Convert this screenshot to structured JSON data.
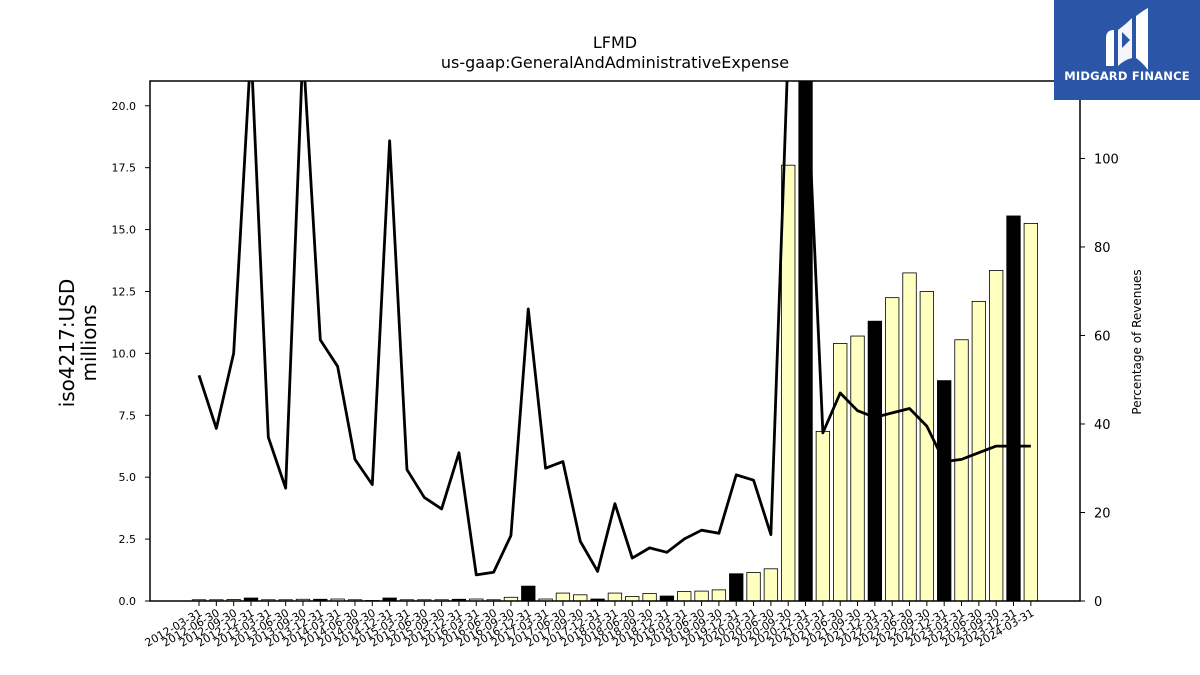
{
  "chart_data": {
    "type": "bar",
    "title": "LFMD",
    "subtitle": "us-gaap:GeneralAndAdministrativeExpense",
    "ylabel": "iso4217:USD",
    "ylabel_sub": "millions",
    "y2label": "Percentage of Revenues",
    "ylim": [
      0,
      21
    ],
    "y2lim": [
      0,
      120
    ],
    "yticks": [
      "0.0",
      "2.5",
      "5.0",
      "7.5",
      "10.0",
      "12.5",
      "15.0",
      "17.5",
      "20.0"
    ],
    "y2ticks": [
      "0",
      "20",
      "40",
      "60",
      "80",
      "100"
    ],
    "grid": false,
    "categories": [
      "2012-03-31",
      "2012-06-30",
      "2012-09-30",
      "2012-12-31",
      "2013-03-31",
      "2013-06-30",
      "2013-09-30",
      "2013-12-31",
      "2014-03-31",
      "2014-06-30",
      "2014-09-30",
      "2014-12-31",
      "2015-03-31",
      "2015-06-30",
      "2015-09-30",
      "2015-12-31",
      "2016-03-31",
      "2016-06-30",
      "2016-09-30",
      "2016-12-31",
      "2017-03-31",
      "2017-06-30",
      "2017-09-30",
      "2017-12-31",
      "2018-03-31",
      "2018-06-30",
      "2018-09-30",
      "2018-12-31",
      "2019-03-31",
      "2019-06-30",
      "2019-09-30",
      "2019-12-31",
      "2020-03-31",
      "2020-06-30",
      "2020-09-30",
      "2020-12-31",
      "2021-03-31",
      "2021-06-30",
      "2021-09-30",
      "2021-12-31",
      "2022-03-31",
      "2022-06-30",
      "2022-09-30",
      "2022-12-31",
      "2023-03-31",
      "2023-06-30",
      "2023-09-30",
      "2023-12-31",
      "2024-03-31"
    ],
    "xtick_labels": [
      "2012-03-31",
      "2012-06-30",
      "2012-09-30",
      "2012-12-31",
      "2013-03-31",
      "2013-06-30",
      "2013-09-30",
      "2013-12-31",
      "2014-03-31",
      "2014-06-30",
      "2014-09-30",
      "2014-12-31",
      "2015-03-31",
      "2015-06-30",
      "2015-09-30",
      "2015-12-31",
      "2016-03-31",
      "2016-06-30",
      "2016-09-30",
      "2016-12-31",
      "2017-03-31",
      "2017-06-30",
      "2017-09-30",
      "2017-12-31",
      "2018-03-31",
      "2018-06-30",
      "2018-09-30",
      "2018-12-31",
      "2019-03-31",
      "2019-06-30",
      "2019-09-30",
      "2019-12-31",
      "2020-03-31",
      "2020-06-30",
      "2020-09-30",
      "2020-12-31",
      "2021-03-31",
      "2021-06-30",
      "2021-09-30",
      "2021-12-31",
      "2022-03-31",
      "2022-06-30",
      "2022-09-30",
      "2022-12-31",
      "2023-03-31",
      "2023-06-30",
      "2023-09-30",
      "2023-12-31",
      "2024-03-31"
    ],
    "values": [
      0.05,
      0.05,
      0.06,
      0.12,
      0.05,
      0.05,
      0.07,
      0.07,
      0.08,
      0.05,
      0.02,
      0.12,
      0.05,
      0.05,
      0.05,
      0.07,
      0.08,
      0.05,
      0.15,
      0.6,
      0.08,
      0.32,
      0.25,
      0.08,
      0.32,
      0.18,
      0.3,
      0.2,
      0.38,
      0.4,
      0.45,
      1.1,
      1.15,
      1.3,
      17.6,
      21.0,
      6.85,
      10.4,
      10.7,
      11.3,
      12.25,
      13.25,
      12.5,
      8.9,
      10.55,
      12.1,
      13.35,
      15.55,
      15.25
    ],
    "annual": [
      false,
      false,
      false,
      true,
      false,
      false,
      false,
      true,
      false,
      false,
      false,
      true,
      false,
      false,
      false,
      true,
      false,
      false,
      false,
      true,
      false,
      false,
      false,
      true,
      false,
      false,
      false,
      true,
      false,
      false,
      false,
      true,
      false,
      false,
      false,
      true,
      false,
      false,
      false,
      true,
      false,
      false,
      false,
      true,
      false,
      false,
      false,
      true,
      false
    ],
    "colors": {
      "quarter_bar": "#ffffc0",
      "annual_bar": "#000000",
      "line": "#000000",
      "logo_bg": "#2b56a8"
    },
    "pct_of_revenue": [
      51,
      39,
      56,
      125,
      37,
      25.5,
      125,
      59,
      53,
      32,
      26.3,
      104,
      29.7,
      23.4,
      20.8,
      33.5,
      5.9,
      6.5,
      14.8,
      66,
      30,
      31.5,
      13.5,
      6.7,
      22,
      9.7,
      12,
      11,
      14,
      16,
      15.3,
      28.5,
      27.3,
      15,
      125,
      125,
      38,
      47,
      43,
      41.5,
      42.5,
      43.5,
      39.5,
      31.5,
      32,
      33.5,
      35,
      35,
      35
    ]
  },
  "logo": {
    "name": "MIDGARD FINANCE",
    "icon": "m-logo-icon"
  }
}
